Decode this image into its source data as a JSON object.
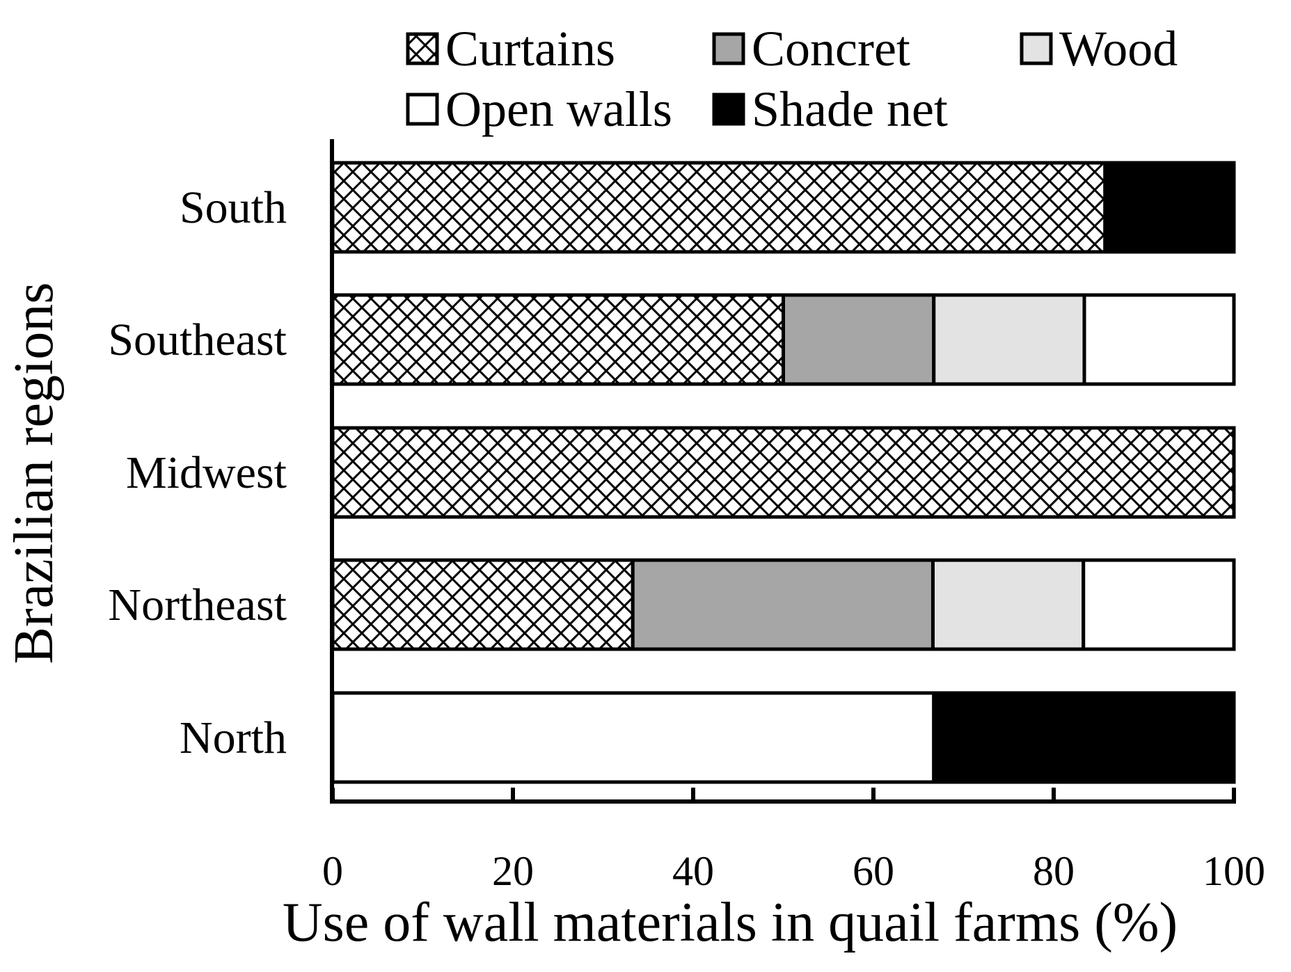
{
  "chart_data": {
    "type": "bar",
    "orientation": "horizontal",
    "stacked": true,
    "title": "",
    "xlabel": "Use of wall materials in quail farms (%)",
    "ylabel": "Brazilian regions",
    "xlim": [
      0,
      100
    ],
    "xticks": [
      "0",
      "20",
      "40",
      "60",
      "80",
      "100"
    ],
    "grid": false,
    "legend_position": "top",
    "categories": [
      "South",
      "Southeast",
      "Midwest",
      "Northeast",
      "North"
    ],
    "series": [
      {
        "name": "Curtains",
        "fill": "crosshatch",
        "color": "#000000",
        "values": [
          85.7,
          50.0,
          100.0,
          33.3,
          0.0
        ]
      },
      {
        "name": "Concret",
        "fill": "solid",
        "color": "#a6a6a6",
        "values": [
          0.0,
          16.7,
          0.0,
          33.3,
          0.0
        ]
      },
      {
        "name": "Wood",
        "fill": "solid",
        "color": "#e3e3e3",
        "values": [
          0.0,
          16.7,
          0.0,
          16.7,
          0.0
        ]
      },
      {
        "name": "Open walls",
        "fill": "solid",
        "color": "#ffffff",
        "values": [
          0.0,
          16.6,
          0.0,
          16.7,
          66.7
        ]
      },
      {
        "name": "Shade net",
        "fill": "solid",
        "color": "#000000",
        "values": [
          14.3,
          0.0,
          0.0,
          0.0,
          33.3
        ]
      }
    ]
  }
}
